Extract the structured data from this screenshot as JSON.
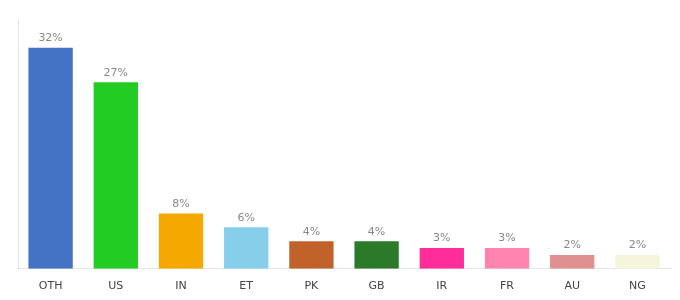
{
  "chart_data": {
    "type": "bar",
    "categories": [
      "OTH",
      "US",
      "IN",
      "ET",
      "PK",
      "GB",
      "IR",
      "FR",
      "AU",
      "NG"
    ],
    "values": [
      32,
      27,
      8,
      6,
      4,
      4,
      3,
      3,
      2,
      2
    ],
    "value_labels": [
      "32%",
      "27%",
      "8%",
      "6%",
      "4%",
      "4%",
      "3%",
      "3%",
      "2%",
      "2%"
    ],
    "colors": [
      "#4472c4",
      "#22cc22",
      "#f5a800",
      "#87ceeb",
      "#c0622a",
      "#2a7a2a",
      "#ff2d9a",
      "#ff85b0",
      "#e09090",
      "#f5f5dc"
    ],
    "ylim": [
      0,
      36
    ],
    "grid": false,
    "data_labels": true,
    "tick_labels": "x"
  }
}
